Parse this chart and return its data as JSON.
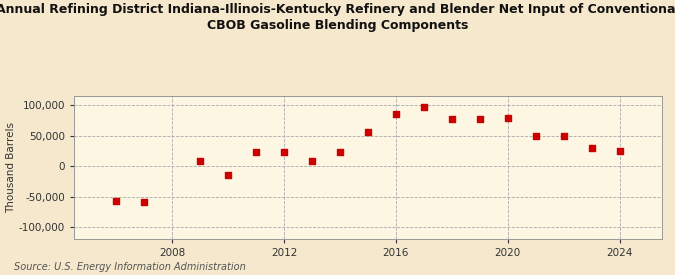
{
  "title_line1": "Annual Refining District Indiana-Illinois-Kentucky Refinery and Blender Net Input of Conventional",
  "title_line2": "CBOB Gasoline Blending Components",
  "ylabel": "Thousand Barrels",
  "source": "Source: U.S. Energy Information Administration",
  "background_color": "#f5e8cc",
  "plot_background_color": "#fdf6e3",
  "years": [
    2006,
    2007,
    2009,
    2010,
    2011,
    2012,
    2013,
    2014,
    2015,
    2016,
    2017,
    2018,
    2019,
    2020,
    2021,
    2022,
    2023,
    2024
  ],
  "values": [
    -57000,
    -58000,
    9000,
    -14000,
    23000,
    23000,
    8000,
    23000,
    57000,
    86000,
    97000,
    77000,
    78000,
    80000,
    50000,
    49000,
    30000,
    25000
  ],
  "marker_color": "#cc0000",
  "xlim": [
    2004.5,
    2025.5
  ],
  "ylim": [
    -120000,
    115000
  ],
  "yticks": [
    -100000,
    -50000,
    0,
    50000,
    100000
  ],
  "xticks": [
    2008,
    2012,
    2016,
    2020,
    2024
  ],
  "grid_color": "#aaaaaa",
  "title_fontsize": 9,
  "axis_fontsize": 7.5,
  "source_fontsize": 7
}
